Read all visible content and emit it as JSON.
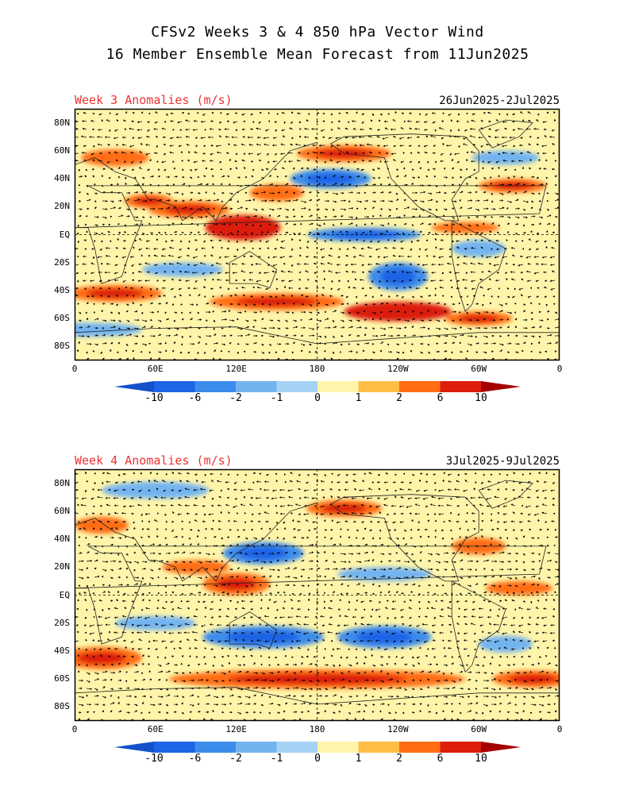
{
  "title": {
    "line1": "CFSv2 Weeks 3 & 4 850 hPa Vector Wind",
    "line2": "16 Member Ensemble Mean Forecast from 11Jun2025"
  },
  "panels": [
    {
      "label": "Week 3 Anomalies (m/s)",
      "dates": "26Jun2025-2Jul2025",
      "features": [
        {
          "lon": 125,
          "lat": 5,
          "rx": 28,
          "ry": 9,
          "v": 6
        },
        {
          "lon": 85,
          "lat": 18,
          "rx": 30,
          "ry": 6,
          "v": 3
        },
        {
          "lon": 55,
          "lat": 24,
          "rx": 18,
          "ry": 5,
          "v": 3
        },
        {
          "lon": 215,
          "lat": 0,
          "rx": 42,
          "ry": 5,
          "v": -3
        },
        {
          "lon": 190,
          "lat": 40,
          "rx": 30,
          "ry": 7,
          "v": -3
        },
        {
          "lon": 200,
          "lat": 58,
          "rx": 35,
          "ry": 6,
          "v": 3
        },
        {
          "lon": 325,
          "lat": 35,
          "rx": 25,
          "ry": 5,
          "v": 3
        },
        {
          "lon": 320,
          "lat": 55,
          "rx": 25,
          "ry": 5,
          "v": -2
        },
        {
          "lon": 240,
          "lat": -30,
          "rx": 22,
          "ry": 10,
          "v": -4
        },
        {
          "lon": 240,
          "lat": -55,
          "rx": 40,
          "ry": 7,
          "v": 6
        },
        {
          "lon": 150,
          "lat": -48,
          "rx": 50,
          "ry": 6,
          "v": 3
        },
        {
          "lon": 30,
          "lat": -42,
          "rx": 35,
          "ry": 6,
          "v": 3
        },
        {
          "lon": 10,
          "lat": -68,
          "rx": 40,
          "ry": 5,
          "v": -2
        },
        {
          "lon": 30,
          "lat": 55,
          "rx": 25,
          "ry": 6,
          "v": 2
        },
        {
          "lon": 300,
          "lat": -10,
          "rx": 20,
          "ry": 6,
          "v": -2
        },
        {
          "lon": 80,
          "lat": -25,
          "rx": 30,
          "ry": 5,
          "v": -2
        },
        {
          "lon": 150,
          "lat": 30,
          "rx": 20,
          "ry": 6,
          "v": 2
        },
        {
          "lon": 290,
          "lat": 5,
          "rx": 25,
          "ry": 4,
          "v": 2
        },
        {
          "lon": 300,
          "lat": -60,
          "rx": 25,
          "ry": 5,
          "v": 3
        }
      ]
    },
    {
      "label": "Week 4 Anomalies (m/s)",
      "dates": "3Jul2025-9Jul2025",
      "features": [
        {
          "lon": 120,
          "lat": 8,
          "rx": 25,
          "ry": 8,
          "v": 3
        },
        {
          "lon": 140,
          "lat": 30,
          "rx": 30,
          "ry": 8,
          "v": -3
        },
        {
          "lon": 200,
          "lat": 62,
          "rx": 28,
          "ry": 6,
          "v": 3
        },
        {
          "lon": 230,
          "lat": 15,
          "rx": 35,
          "ry": 5,
          "v": -2
        },
        {
          "lon": 140,
          "lat": -30,
          "rx": 45,
          "ry": 8,
          "v": -3
        },
        {
          "lon": 230,
          "lat": -30,
          "rx": 35,
          "ry": 8,
          "v": -3
        },
        {
          "lon": 180,
          "lat": -60,
          "rx": 110,
          "ry": 7,
          "v": 4
        },
        {
          "lon": 20,
          "lat": -45,
          "rx": 30,
          "ry": 8,
          "v": 3
        },
        {
          "lon": 320,
          "lat": -35,
          "rx": 20,
          "ry": 6,
          "v": -2
        },
        {
          "lon": 340,
          "lat": -60,
          "rx": 30,
          "ry": 6,
          "v": 3
        },
        {
          "lon": 60,
          "lat": 75,
          "rx": 40,
          "ry": 6,
          "v": -2
        },
        {
          "lon": 20,
          "lat": 50,
          "rx": 20,
          "ry": 6,
          "v": 2
        },
        {
          "lon": 300,
          "lat": 35,
          "rx": 20,
          "ry": 6,
          "v": 2
        },
        {
          "lon": 90,
          "lat": 20,
          "rx": 25,
          "ry": 5,
          "v": 2
        },
        {
          "lon": 330,
          "lat": 5,
          "rx": 25,
          "ry": 5,
          "v": 2
        },
        {
          "lon": 60,
          "lat": -20,
          "rx": 30,
          "ry": 5,
          "v": -2
        }
      ]
    }
  ],
  "y_axis_labels": [
    "80N",
    "60N",
    "40N",
    "20N",
    "EQ",
    "20S",
    "40S",
    "60S",
    "80S"
  ],
  "x_axis_labels": [
    "0",
    "60E",
    "120E",
    "180",
    "120W",
    "60W",
    "0"
  ],
  "colorbar": {
    "labels": [
      "-10",
      "-6",
      "-2",
      "-1",
      "0",
      "1",
      "2",
      "6",
      "10"
    ],
    "colors": [
      "#1e64e6",
      "#3c8ceb",
      "#73b4f0",
      "#a5d2f5",
      "#d9f5fa",
      "#fff5aa",
      "#ffbe46",
      "#ff6e14",
      "#dc1e0a",
      "#a50000",
      "#1450c8"
    ]
  },
  "map": {
    "lat_range": [
      -90,
      90
    ],
    "lon_range": [
      0,
      360
    ],
    "background_color": "#fff5aa",
    "grid": "dashed lines at equator and 180"
  }
}
